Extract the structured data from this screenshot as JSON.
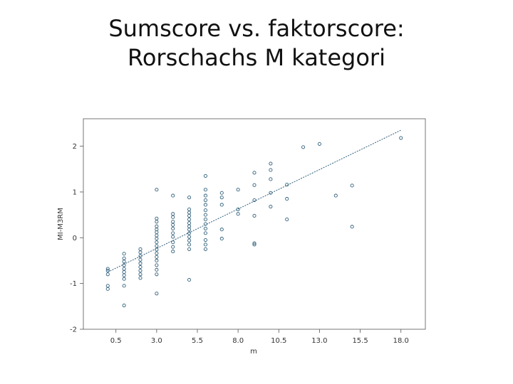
{
  "slide": {
    "title_line1": "Sumscore vs. faktorscore:",
    "title_line2": "Rorschachs M kategori"
  },
  "chart_data": {
    "type": "scatter",
    "title": "",
    "xlabel": "m",
    "ylabel": "MI-M3RM",
    "xlim": [
      -1.5,
      19.5
    ],
    "ylim": [
      -2,
      2.6
    ],
    "xticks": [
      0.5,
      3.0,
      5.5,
      8.0,
      10.5,
      13.0,
      15.5,
      18.0
    ],
    "xtick_labels": [
      "0.5",
      "3.0",
      "5.5",
      "8.0",
      "10.5",
      "13.0",
      "15.5",
      "18.0"
    ],
    "yticks": [
      -2,
      -1,
      0,
      1,
      2
    ],
    "ytick_labels": [
      "-2",
      "-1",
      "0",
      "1",
      "2"
    ],
    "grid": false,
    "colors": {
      "points": "#2f5f7a",
      "line": "#2f5f7a",
      "axis": "#555555"
    },
    "series": [
      {
        "values": [
          [
            0,
            -0.72
          ],
          [
            0,
            -0.8
          ],
          [
            0,
            -0.68
          ],
          [
            0,
            -1.05
          ],
          [
            0,
            -1.12
          ],
          [
            1,
            -0.35
          ],
          [
            1,
            -0.45
          ],
          [
            1,
            -0.52
          ],
          [
            1,
            -0.6
          ],
          [
            1,
            -0.68
          ],
          [
            1,
            -0.75
          ],
          [
            1,
            -0.82
          ],
          [
            1,
            -0.9
          ],
          [
            1,
            -1.05
          ],
          [
            1,
            -1.48
          ],
          [
            2,
            -0.25
          ],
          [
            2,
            -0.32
          ],
          [
            2,
            -0.4
          ],
          [
            2,
            -0.48
          ],
          [
            2,
            -0.56
          ],
          [
            2,
            -0.64
          ],
          [
            2,
            -0.72
          ],
          [
            2,
            -0.8
          ],
          [
            2,
            -0.88
          ],
          [
            3,
            1.05
          ],
          [
            3,
            0.42
          ],
          [
            3,
            0.35
          ],
          [
            3,
            0.25
          ],
          [
            3,
            0.18
          ],
          [
            3,
            0.12
          ],
          [
            3,
            0.05
          ],
          [
            3,
            -0.02
          ],
          [
            3,
            -0.1
          ],
          [
            3,
            -0.18
          ],
          [
            3,
            -0.26
          ],
          [
            3,
            -0.34
          ],
          [
            3,
            -0.42
          ],
          [
            3,
            -0.5
          ],
          [
            3,
            -0.6
          ],
          [
            3,
            -0.7
          ],
          [
            3,
            -0.8
          ],
          [
            3,
            -1.22
          ],
          [
            4,
            0.92
          ],
          [
            4,
            0.52
          ],
          [
            4,
            0.45
          ],
          [
            4,
            0.35
          ],
          [
            4,
            0.28
          ],
          [
            4,
            0.2
          ],
          [
            4,
            0.1
          ],
          [
            4,
            0.02
          ],
          [
            4,
            -0.1
          ],
          [
            4,
            -0.2
          ],
          [
            4,
            -0.3
          ],
          [
            5,
            0.88
          ],
          [
            5,
            0.62
          ],
          [
            5,
            0.55
          ],
          [
            5,
            0.48
          ],
          [
            5,
            0.4
          ],
          [
            5,
            0.32
          ],
          [
            5,
            0.25
          ],
          [
            5,
            0.18
          ],
          [
            5,
            0.1
          ],
          [
            5,
            0.02
          ],
          [
            5,
            -0.06
          ],
          [
            5,
            -0.15
          ],
          [
            5,
            -0.25
          ],
          [
            5,
            -0.92
          ],
          [
            6,
            1.35
          ],
          [
            6,
            1.05
          ],
          [
            6,
            0.92
          ],
          [
            6,
            0.82
          ],
          [
            6,
            0.72
          ],
          [
            6,
            0.6
          ],
          [
            6,
            0.5
          ],
          [
            6,
            0.4
          ],
          [
            6,
            0.3
          ],
          [
            6,
            0.2
          ],
          [
            6,
            0.1
          ],
          [
            6,
            -0.05
          ],
          [
            6,
            -0.15
          ],
          [
            6,
            -0.25
          ],
          [
            7,
            0.98
          ],
          [
            7,
            0.88
          ],
          [
            7,
            0.72
          ],
          [
            7,
            0.18
          ],
          [
            7,
            -0.02
          ],
          [
            8,
            1.05
          ],
          [
            8,
            0.62
          ],
          [
            8,
            0.52
          ],
          [
            9,
            1.42
          ],
          [
            9,
            1.15
          ],
          [
            9,
            0.82
          ],
          [
            9,
            0.48
          ],
          [
            9,
            -0.12
          ],
          [
            9,
            -0.15
          ],
          [
            10,
            1.62
          ],
          [
            10,
            1.48
          ],
          [
            10,
            1.28
          ],
          [
            10,
            0.98
          ],
          [
            10,
            0.68
          ],
          [
            11,
            1.16
          ],
          [
            11,
            0.85
          ],
          [
            11,
            0.4
          ],
          [
            12,
            1.98
          ],
          [
            13,
            2.05
          ],
          [
            14,
            0.92
          ],
          [
            15,
            1.14
          ],
          [
            15,
            0.24
          ],
          [
            18,
            2.18
          ]
        ]
      }
    ],
    "regression_line": {
      "x": [
        0,
        18
      ],
      "y": [
        -0.75,
        2.35
      ]
    }
  }
}
